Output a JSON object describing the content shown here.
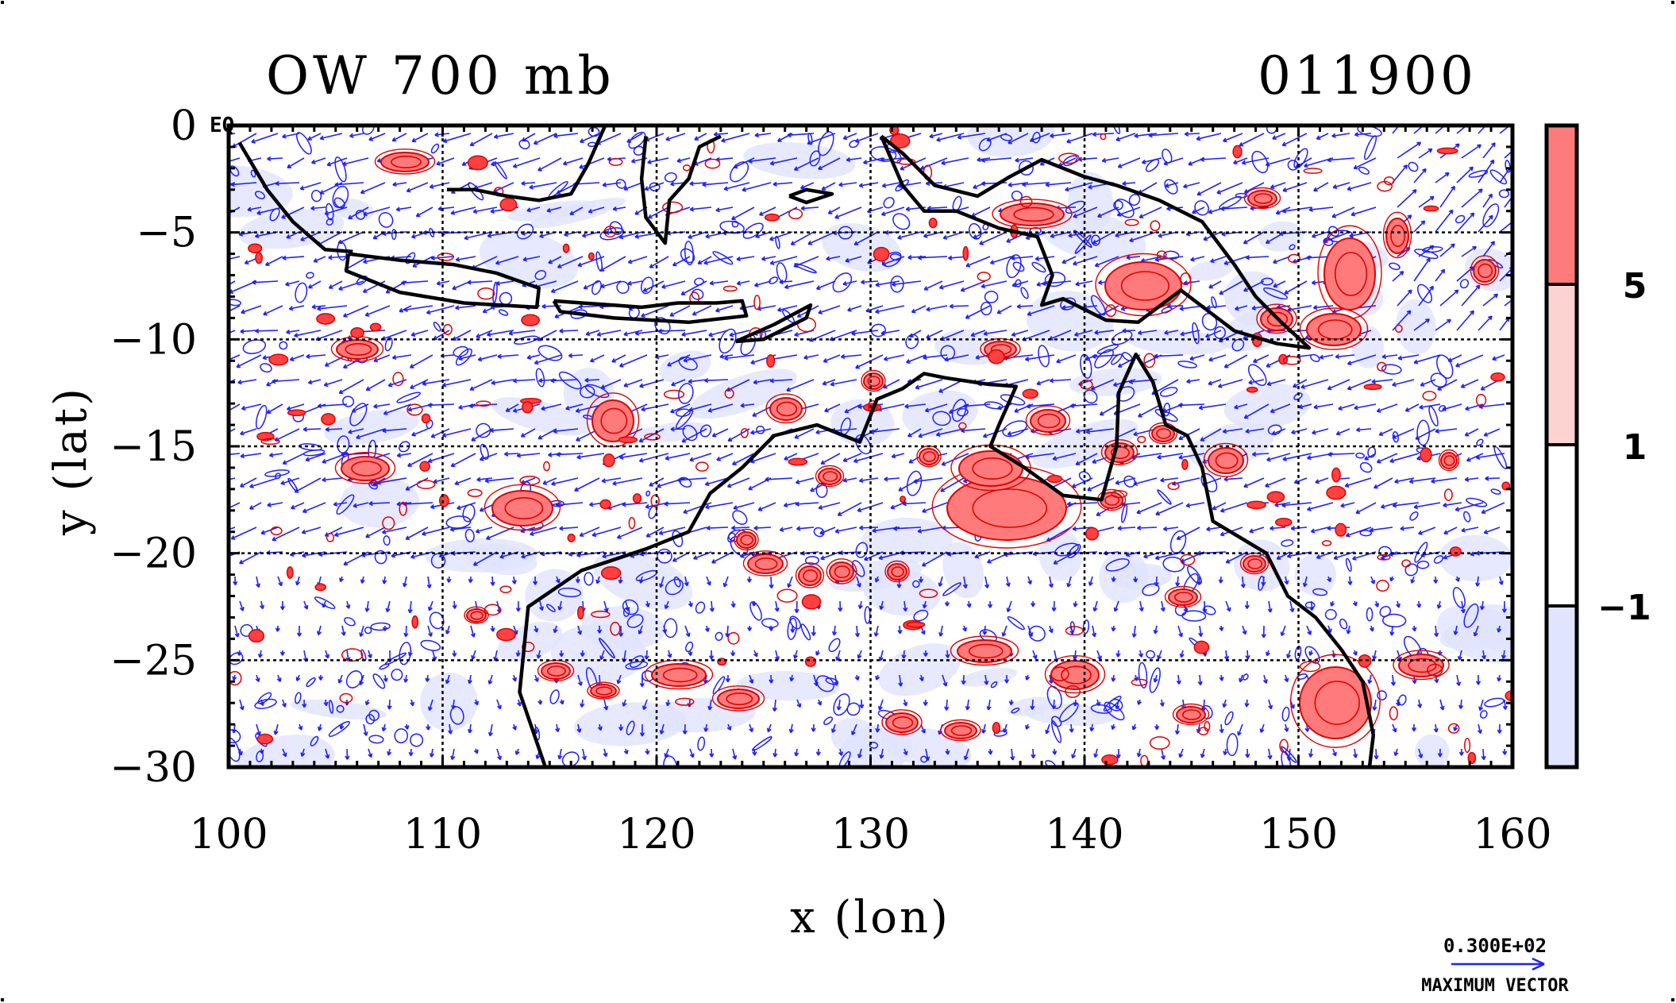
{
  "title_left": "OW 700 mb",
  "title_right": "011900",
  "eq_label": "EQ",
  "xlabel": "x (lon)",
  "ylabel": "y (lat)",
  "x_ticks": [
    "100",
    "110",
    "120",
    "130",
    "140",
    "150",
    "160"
  ],
  "y_ticks": [
    "0",
    "−5",
    "−10",
    "−15",
    "−20",
    "−25",
    "−30"
  ],
  "colorbar": {
    "labels": [
      "5",
      "1",
      "−1"
    ],
    "colors": [
      "#ff7b7b",
      "#ffd2d2",
      "#ffffff",
      "#e0e4ff"
    ]
  },
  "vector_legend": {
    "magnitude": "0.300E+02",
    "label": "MAXIMUM VECTOR"
  },
  "colors": {
    "vectors": "#1f1fff",
    "positive_contour": "#e00000",
    "coastline": "#000000"
  },
  "chart_data": {
    "type": "map",
    "title": "OW 700 mb",
    "timestamp": "011900",
    "xlabel": "x (lon)",
    "ylabel": "y (lat)",
    "xlim": [
      100,
      160
    ],
    "ylim": [
      -30,
      0
    ],
    "xticks": [
      100,
      110,
      120,
      130,
      140,
      150,
      160
    ],
    "yticks": [
      0,
      -5,
      -10,
      -15,
      -20,
      -25,
      -30
    ],
    "grid": true,
    "colorbar_levels": [
      -1,
      1,
      5
    ],
    "reference_vector": 30,
    "coastlines": [
      [
        [
          100.5,
          -0.8
        ],
        [
          101.8,
          -3.0
        ],
        [
          103.0,
          -4.5
        ],
        [
          104.5,
          -5.8
        ],
        [
          105.8,
          -5.9
        ]
      ],
      [
        [
          105.6,
          -6.0
        ],
        [
          108.0,
          -6.3
        ],
        [
          110.5,
          -6.5
        ],
        [
          112.5,
          -6.9
        ],
        [
          114.5,
          -7.6
        ],
        [
          114.4,
          -8.5
        ],
        [
          111.0,
          -8.3
        ],
        [
          108.0,
          -7.8
        ],
        [
          105.5,
          -6.8
        ],
        [
          105.6,
          -6.0
        ]
      ],
      [
        [
          115.2,
          -8.2
        ],
        [
          116.5,
          -8.3
        ],
        [
          118.0,
          -8.4
        ],
        [
          119.3,
          -8.5
        ],
        [
          121.0,
          -8.3
        ],
        [
          122.8,
          -8.3
        ],
        [
          124.0,
          -8.2
        ],
        [
          124.2,
          -8.9
        ],
        [
          121.5,
          -9.2
        ],
        [
          118.0,
          -9.0
        ],
        [
          115.5,
          -8.7
        ],
        [
          115.2,
          -8.2
        ]
      ],
      [
        [
          123.7,
          -10.1
        ],
        [
          125.5,
          -9.3
        ],
        [
          127.2,
          -8.4
        ],
        [
          127.0,
          -9.0
        ],
        [
          125.0,
          -10.0
        ],
        [
          123.7,
          -10.1
        ]
      ],
      [
        [
          110.2,
          -3.0
        ],
        [
          111.5,
          -3.0
        ],
        [
          113.0,
          -3.3
        ],
        [
          114.5,
          -3.5
        ],
        [
          116.0,
          -3.2
        ],
        [
          116.8,
          -1.8
        ],
        [
          117.6,
          0.0
        ]
      ],
      [
        [
          119.5,
          -0.5
        ],
        [
          119.3,
          -2.5
        ],
        [
          119.5,
          -4.3
        ],
        [
          120.4,
          -5.5
        ],
        [
          120.6,
          -3.5
        ],
        [
          121.5,
          -2.5
        ],
        [
          122.0,
          -1.0
        ],
        [
          123.0,
          -0.5
        ]
      ],
      [
        [
          126.2,
          -3.3
        ],
        [
          127.0,
          -3.6
        ],
        [
          128.2,
          -3.2
        ],
        [
          127.0,
          -3.0
        ],
        [
          126.2,
          -3.3
        ]
      ],
      [
        [
          130.5,
          -0.5
        ],
        [
          131.5,
          -1.3
        ],
        [
          133.0,
          -2.8
        ],
        [
          135.0,
          -3.3
        ],
        [
          136.5,
          -2.4
        ],
        [
          138.0,
          -1.6
        ],
        [
          140.0,
          -2.4
        ],
        [
          141.5,
          -2.8
        ],
        [
          143.5,
          -3.5
        ],
        [
          145.5,
          -4.5
        ],
        [
          147.0,
          -6.5
        ],
        [
          148.0,
          -8.0
        ],
        [
          149.2,
          -9.2
        ],
        [
          150.5,
          -10.4
        ],
        [
          149.0,
          -10.2
        ],
        [
          147.0,
          -9.6
        ],
        [
          144.5,
          -7.7
        ],
        [
          142.5,
          -9.2
        ],
        [
          141.0,
          -9.1
        ],
        [
          139.0,
          -8.1
        ],
        [
          138.0,
          -8.4
        ],
        [
          138.5,
          -7.0
        ],
        [
          137.8,
          -5.2
        ],
        [
          136.0,
          -4.8
        ],
        [
          134.0,
          -4.0
        ],
        [
          132.5,
          -4.0
        ],
        [
          131.5,
          -2.8
        ],
        [
          130.5,
          -0.5
        ]
      ],
      [
        [
          115.0,
          -34.0
        ],
        [
          114.8,
          -30.0
        ],
        [
          113.6,
          -26.5
        ],
        [
          114.0,
          -22.5
        ],
        [
          116.5,
          -20.8
        ],
        [
          119.5,
          -19.8
        ],
        [
          121.5,
          -19.0
        ],
        [
          122.5,
          -17.2
        ],
        [
          124.0,
          -16.0
        ],
        [
          125.5,
          -14.5
        ],
        [
          127.5,
          -14.0
        ],
        [
          129.5,
          -14.8
        ],
        [
          130.3,
          -12.8
        ],
        [
          131.5,
          -12.3
        ],
        [
          132.5,
          -11.6
        ],
        [
          133.5,
          -11.8
        ],
        [
          135.5,
          -12.1
        ],
        [
          136.8,
          -12.2
        ],
        [
          136.0,
          -14.0
        ],
        [
          135.6,
          -15.0
        ],
        [
          137.2,
          -16.0
        ],
        [
          139.0,
          -17.3
        ],
        [
          140.8,
          -17.5
        ],
        [
          141.5,
          -15.0
        ],
        [
          141.6,
          -12.5
        ],
        [
          142.4,
          -10.7
        ],
        [
          143.2,
          -12.0
        ],
        [
          143.8,
          -14.0
        ],
        [
          144.8,
          -14.5
        ],
        [
          145.5,
          -16.0
        ],
        [
          146.0,
          -18.5
        ],
        [
          148.5,
          -20.0
        ],
        [
          149.5,
          -22.0
        ],
        [
          150.8,
          -23.0
        ],
        [
          152.0,
          -24.5
        ],
        [
          153.0,
          -26.0
        ],
        [
          153.5,
          -28.5
        ],
        [
          153.2,
          -31.0
        ]
      ]
    ]
  }
}
